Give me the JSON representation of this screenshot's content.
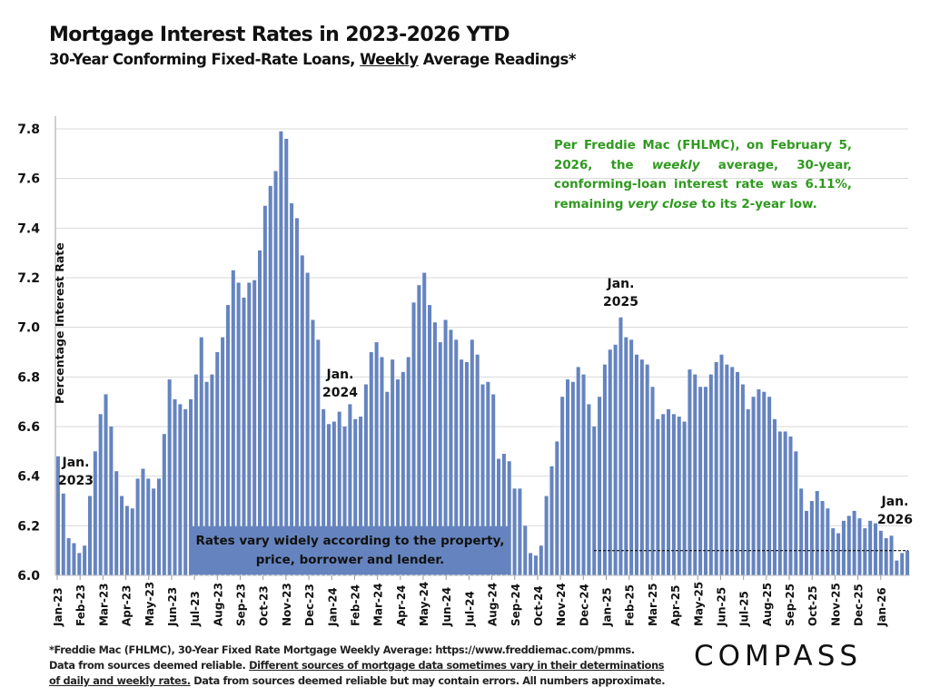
{
  "header": {
    "title": "Mortgage Interest Rates in 2023-2026 YTD",
    "subtitle_pre": "30-Year Conforming Fixed-Rate Loans, ",
    "subtitle_underlined": "Weekly",
    "subtitle_post": " Average Readings*"
  },
  "annotations": {
    "jan2023": [
      "Jan.",
      "2023"
    ],
    "jan2024": [
      "Jan.",
      "2024"
    ],
    "jan2025": [
      "Jan.",
      "2025"
    ],
    "jan2026": [
      "Jan.",
      "2026"
    ],
    "green_note": {
      "p1": "Per Freddie Mac (FHLMC), on February 5, 2026, the ",
      "p2_italic": "weekly",
      "p3": " average, 30-year, conforming-loan interest rate was 6.11%, remaining ",
      "p4_italic": "very close",
      "p5": " to its 2-year low."
    },
    "rate_box": [
      "Rates vary widely according to the property,",
      "price, borrower and lender."
    ],
    "dashed_line_value": 6.1
  },
  "footer": {
    "line1": "*Freddie Mac (FHLMC), 30-Year Fixed Rate Mortgage Weekly Average:   https://www.freddiemac.com/pmms.",
    "line2_pre": "Data from sources deemed reliable. ",
    "line2_underlined": "Different sources of mortgage data sometimes vary in their determinations",
    "line3_underlined": "of daily and weekly rates.",
    "line3_post": " Data from sources deemed reliable but may contain errors. All numbers approximate."
  },
  "brand": {
    "logo_text": "COMPASS"
  },
  "colors": {
    "bar": "#6584bf",
    "green": "#2f9a1e",
    "grid": "#d9d9d9"
  },
  "chart_data": {
    "type": "bar",
    "title": "Mortgage Interest Rates in 2023-2026 YTD",
    "ylabel": "Percentage Interest  Rate",
    "xlabel": "",
    "ylim": [
      6.0,
      7.8
    ],
    "yticks": [
      "6.0",
      "6.2",
      "6.4",
      "6.6",
      "6.8",
      "7.0",
      "7.2",
      "7.4",
      "7.6",
      "7.8"
    ],
    "grid": true,
    "month_ticks": [
      "Jan-23",
      "Feb-23",
      "Mar-23",
      "Apr-23",
      "May-23",
      "Jun-23",
      "Jul-23",
      "Aug-23",
      "Sep-23",
      "Oct-23",
      "Nov-23",
      "Dec-23",
      "Jan-24",
      "Feb-24",
      "Mar-24",
      "Apr-24",
      "May-24",
      "Jun-24",
      "Jul-24",
      "Aug-24",
      "Sep-24",
      "Oct-24",
      "Nov-24",
      "Dec-24",
      "Jan-25",
      "Feb-25",
      "Mar-25",
      "Apr-25",
      "May-25",
      "Jun-25",
      "Jul-25",
      "Aug-25",
      "Sep-25",
      "Oct-25",
      "Nov-25",
      "Dec-25",
      "Jan-26"
    ],
    "values": [
      6.48,
      6.33,
      6.15,
      6.13,
      6.09,
      6.12,
      6.32,
      6.5,
      6.65,
      6.73,
      6.6,
      6.42,
      6.32,
      6.28,
      6.27,
      6.39,
      6.43,
      6.39,
      6.35,
      6.39,
      6.57,
      6.79,
      6.71,
      6.69,
      6.67,
      6.71,
      6.81,
      6.96,
      6.78,
      6.81,
      6.9,
      6.96,
      7.09,
      7.23,
      7.18,
      7.12,
      7.18,
      7.19,
      7.31,
      7.49,
      7.57,
      7.63,
      7.79,
      7.76,
      7.5,
      7.44,
      7.29,
      7.22,
      7.03,
      6.95,
      6.67,
      6.61,
      6.62,
      6.66,
      6.6,
      6.69,
      6.63,
      6.64,
      6.77,
      6.9,
      6.94,
      6.88,
      6.74,
      6.87,
      6.79,
      6.82,
      6.88,
      7.1,
      7.17,
      7.22,
      7.09,
      7.02,
      6.94,
      7.03,
      6.99,
      6.95,
      6.87,
      6.86,
      6.95,
      6.89,
      6.77,
      6.78,
      6.73,
      6.47,
      6.49,
      6.46,
      6.35,
      6.35,
      6.2,
      6.09,
      6.08,
      6.12,
      6.32,
      6.44,
      6.54,
      6.72,
      6.79,
      6.78,
      6.84,
      6.81,
      6.69,
      6.6,
      6.72,
      6.85,
      6.91,
      6.93,
      7.04,
      6.96,
      6.95,
      6.89,
      6.87,
      6.85,
      6.76,
      6.63,
      6.65,
      6.67,
      6.65,
      6.64,
      6.62,
      6.83,
      6.81,
      6.76,
      6.76,
      6.81,
      6.86,
      6.89,
      6.85,
      6.84,
      6.82,
      6.77,
      6.67,
      6.72,
      6.75,
      6.74,
      6.72,
      6.63,
      6.58,
      6.58,
      6.56,
      6.5,
      6.35,
      6.26,
      6.3,
      6.34,
      6.3,
      6.27,
      6.19,
      6.17,
      6.22,
      6.24,
      6.26,
      6.23,
      6.19,
      6.22,
      6.21,
      6.18,
      6.15,
      6.16,
      6.06,
      6.09,
      6.1
    ]
  }
}
